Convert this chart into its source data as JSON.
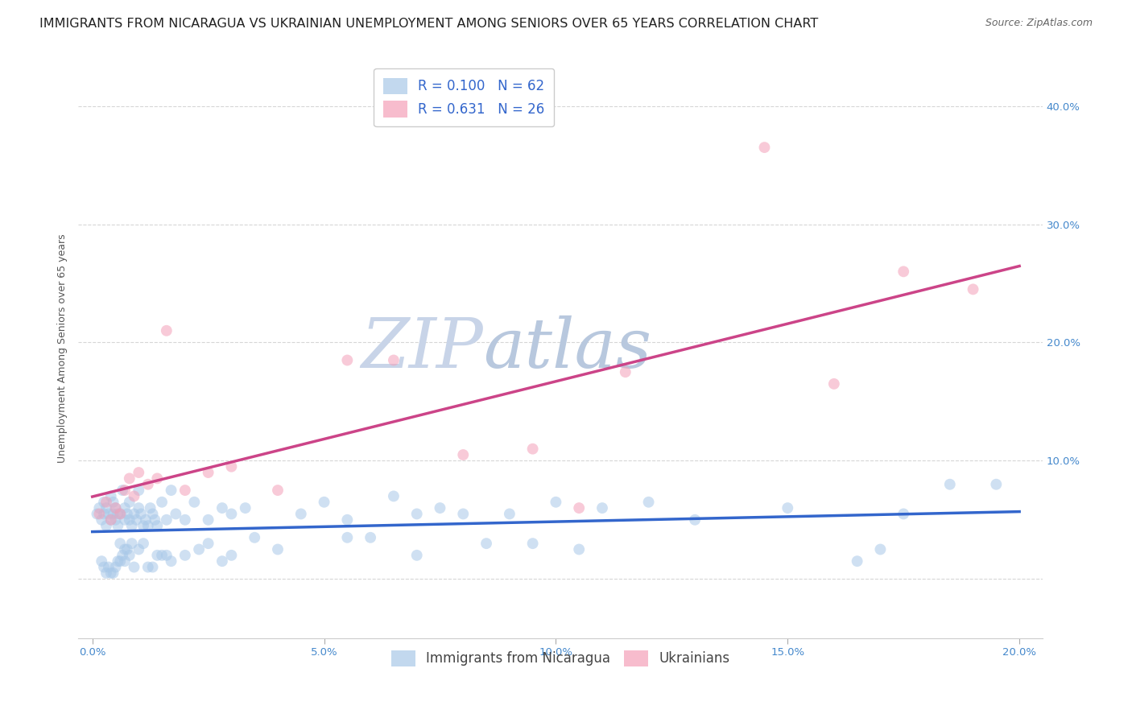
{
  "title": "IMMIGRANTS FROM NICARAGUA VS UKRAINIAN UNEMPLOYMENT AMONG SENIORS OVER 65 YEARS CORRELATION CHART",
  "source": "Source: ZipAtlas.com",
  "ylabel": "Unemployment Among Seniors over 65 years",
  "x_ticks": [
    0,
    5,
    10,
    15,
    20
  ],
  "x_ticklabels": [
    "0.0%",
    "5.0%",
    "10.0%",
    "15.0%",
    "20.0%"
  ],
  "y_ticks": [
    0,
    10,
    20,
    30,
    40
  ],
  "y_ticklabels": [
    "",
    "10.0%",
    "20.0%",
    "30.0%",
    "40.0%"
  ],
  "xlim": [
    -0.3,
    20.5
  ],
  "ylim": [
    -5,
    44
  ],
  "legend_bottom1": "Immigrants from Nicaragua",
  "legend_bottom2": "Ukrainians",
  "blue_color": "#a8c8e8",
  "pink_color": "#f4a0b8",
  "blue_line_color": "#3366cc",
  "pink_line_color": "#cc4488",
  "watermark_zip_color": "#cdd8ea",
  "watermark_atlas_color": "#c8d4e6",
  "grid_color": "#cccccc",
  "background_color": "#ffffff",
  "title_fontsize": 11.5,
  "source_fontsize": 9,
  "axis_label_fontsize": 9,
  "tick_fontsize": 9.5,
  "legend_fontsize": 12,
  "marker_size": 100,
  "marker_alpha": 0.55,
  "line_width": 2.5,
  "blue_R": 0.1,
  "blue_N": 62,
  "pink_R": 0.631,
  "pink_N": 26,
  "blue_scatter_x": [
    0.1,
    0.15,
    0.2,
    0.25,
    0.25,
    0.3,
    0.3,
    0.35,
    0.4,
    0.4,
    0.45,
    0.45,
    0.5,
    0.5,
    0.55,
    0.55,
    0.6,
    0.65,
    0.7,
    0.7,
    0.75,
    0.8,
    0.8,
    0.85,
    0.9,
    0.95,
    1.0,
    1.0,
    1.05,
    1.1,
    1.15,
    1.2,
    1.25,
    1.3,
    1.35,
    1.4,
    1.5,
    1.6,
    1.7,
    1.8,
    2.0,
    2.2,
    2.5,
    2.8,
    3.0,
    3.3,
    4.5,
    5.0,
    5.5,
    6.5,
    7.0,
    7.5,
    8.0,
    9.0,
    10.0,
    11.0,
    12.0,
    13.0,
    15.0,
    17.5,
    18.5,
    19.5
  ],
  "blue_scatter_y": [
    5.5,
    6.0,
    5.0,
    5.5,
    6.5,
    4.5,
    6.0,
    5.5,
    5.0,
    7.0,
    5.5,
    6.5,
    5.0,
    6.0,
    5.5,
    4.5,
    5.5,
    7.5,
    5.0,
    6.0,
    5.5,
    5.0,
    6.5,
    4.5,
    5.5,
    5.0,
    6.0,
    7.5,
    5.5,
    4.5,
    5.0,
    4.5,
    6.0,
    5.5,
    5.0,
    4.5,
    6.5,
    5.0,
    7.5,
    5.5,
    5.0,
    6.5,
    5.0,
    6.0,
    5.5,
    6.0,
    5.5,
    6.5,
    5.0,
    7.0,
    5.5,
    6.0,
    5.5,
    5.5,
    6.5,
    6.0,
    6.5,
    5.0,
    6.0,
    5.5,
    8.0,
    8.0
  ],
  "blue_scatter_x2": [
    0.2,
    0.3,
    0.5,
    0.6,
    0.8,
    1.0,
    1.3,
    1.5,
    1.7,
    2.0,
    2.3,
    2.8,
    1.2,
    0.4,
    0.7,
    0.9,
    1.4,
    3.5,
    4.0,
    5.5,
    6.0,
    8.5,
    0.6,
    0.7,
    1.1,
    0.55,
    0.65,
    0.75,
    0.85,
    1.6,
    2.5,
    3.0,
    7.0,
    9.5,
    10.5,
    16.5,
    17.0,
    0.35,
    0.45,
    0.25
  ],
  "blue_scatter_y2": [
    1.5,
    0.5,
    1.0,
    1.5,
    2.0,
    2.5,
    1.0,
    2.0,
    1.5,
    2.0,
    2.5,
    1.5,
    1.0,
    0.5,
    1.5,
    1.0,
    2.0,
    3.5,
    2.5,
    3.5,
    3.5,
    3.0,
    3.0,
    2.5,
    3.0,
    1.5,
    2.0,
    2.5,
    3.0,
    2.0,
    3.0,
    2.0,
    2.0,
    3.0,
    2.5,
    1.5,
    2.5,
    1.0,
    0.5,
    1.0
  ],
  "pink_scatter_x": [
    0.15,
    0.3,
    0.4,
    0.5,
    0.6,
    0.7,
    0.8,
    0.9,
    1.0,
    1.2,
    1.4,
    1.6,
    2.0,
    2.5,
    3.0,
    4.0,
    5.5,
    6.5,
    8.0,
    9.5,
    10.5,
    11.5,
    14.5,
    16.0,
    17.5,
    19.0
  ],
  "pink_scatter_y": [
    5.5,
    6.5,
    5.0,
    6.0,
    5.5,
    7.5,
    8.5,
    7.0,
    9.0,
    8.0,
    8.5,
    21.0,
    7.5,
    9.0,
    9.5,
    7.5,
    18.5,
    18.5,
    10.5,
    11.0,
    6.0,
    17.5,
    36.5,
    16.5,
    26.0,
    24.5
  ]
}
